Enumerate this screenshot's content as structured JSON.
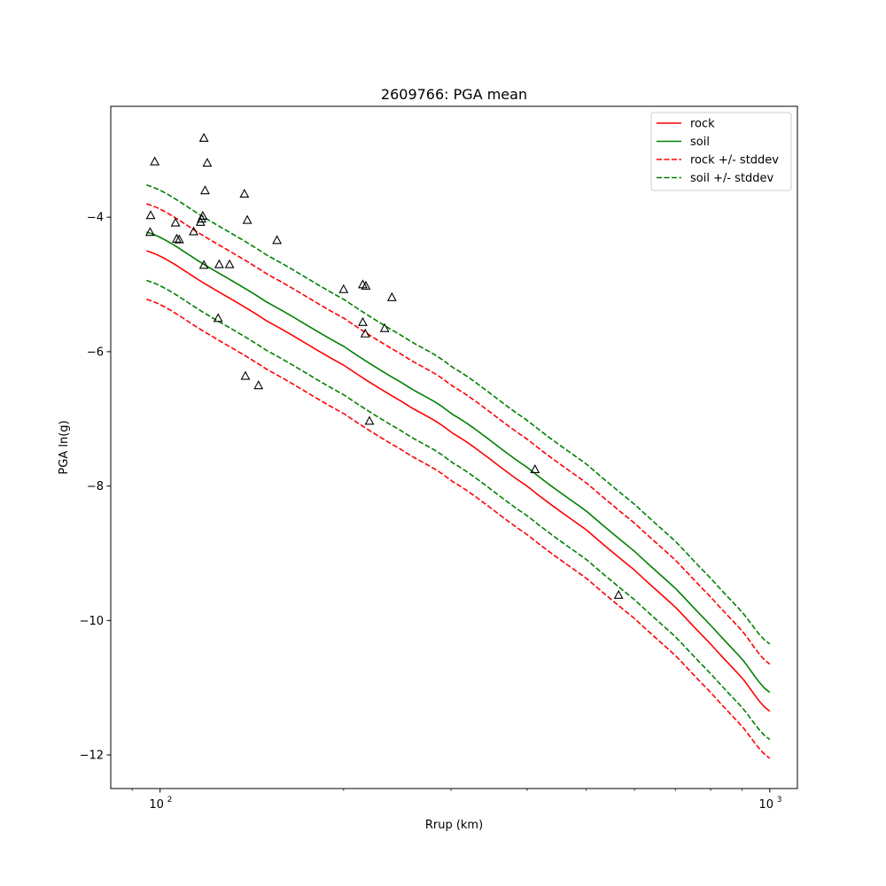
{
  "chart_data": {
    "type": "line",
    "title": "2609766: PGA mean",
    "xlabel": "Rrup (km)",
    "ylabel": "PGA ln(g)",
    "xscale": "log",
    "xlim": [
      83,
      1110
    ],
    "ylim": [
      -12.5,
      -2.35
    ],
    "x_ticks": [
      100,
      1000
    ],
    "x_tick_labels": [
      {
        "base": "10",
        "exp": "2"
      },
      {
        "base": "10",
        "exp": "3"
      }
    ],
    "y_ticks": [
      -12,
      -10,
      -8,
      -6,
      -4
    ],
    "y_tick_labels": [
      "−12",
      "−10",
      "−8",
      "−6",
      "−4"
    ],
    "grid": false,
    "legend_position": "top-right",
    "colors": {
      "rock": "#ff0000",
      "soil": "#008000",
      "points": "#000000"
    },
    "series": [
      {
        "name": "rock",
        "style": "solid",
        "color": "#ff0000",
        "x": [
          95,
          120,
          150,
          200,
          250,
          300,
          400,
          500,
          600,
          700,
          800,
          900,
          1000
        ],
        "y": [
          -4.5,
          -5.02,
          -5.55,
          -6.2,
          -6.75,
          -7.2,
          -8.0,
          -8.65,
          -9.25,
          -9.8,
          -10.35,
          -10.85,
          -11.35
        ]
      },
      {
        "name": "soil",
        "style": "solid",
        "color": "#008000",
        "x": [
          95,
          120,
          150,
          200,
          250,
          300,
          400,
          500,
          600,
          700,
          800,
          900,
          1000
        ],
        "y": [
          -4.22,
          -4.74,
          -5.27,
          -5.92,
          -6.47,
          -6.92,
          -7.72,
          -8.37,
          -8.97,
          -9.52,
          -10.07,
          -10.57,
          -11.07
        ]
      },
      {
        "name": "rock +/- stddev",
        "style": "dashed",
        "color": "#ff0000",
        "x": [
          95,
          120,
          150,
          200,
          250,
          300,
          400,
          500,
          600,
          700,
          800,
          900,
          1000
        ],
        "y": [
          -3.8,
          -4.32,
          -4.85,
          -5.5,
          -6.05,
          -6.5,
          -7.3,
          -7.95,
          -8.55,
          -9.1,
          -9.65,
          -10.15,
          -10.65
        ]
      },
      {
        "name": "rock +/- stddev (lower)",
        "style": "dashed",
        "color": "#ff0000",
        "legend": false,
        "x": [
          95,
          120,
          150,
          200,
          250,
          300,
          400,
          500,
          600,
          700,
          800,
          900,
          1000
        ],
        "y": [
          -5.22,
          -5.74,
          -6.27,
          -6.92,
          -7.47,
          -7.92,
          -8.72,
          -9.37,
          -9.97,
          -10.52,
          -11.07,
          -11.57,
          -12.05
        ]
      },
      {
        "name": "soil +/- stddev",
        "style": "dashed",
        "color": "#008000",
        "x": [
          95,
          120,
          150,
          200,
          250,
          300,
          400,
          500,
          600,
          700,
          800,
          900,
          1000
        ],
        "y": [
          -3.52,
          -4.04,
          -4.57,
          -5.22,
          -5.77,
          -6.22,
          -7.02,
          -7.67,
          -8.27,
          -8.82,
          -9.37,
          -9.87,
          -10.35
        ]
      },
      {
        "name": "soil +/- stddev (lower)",
        "style": "dashed",
        "color": "#008000",
        "legend": false,
        "x": [
          95,
          120,
          150,
          200,
          250,
          300,
          400,
          500,
          600,
          700,
          800,
          900,
          1000
        ],
        "y": [
          -4.94,
          -5.46,
          -5.99,
          -6.64,
          -7.19,
          -7.64,
          -8.44,
          -9.09,
          -9.69,
          -10.24,
          -10.79,
          -11.29,
          -11.77
        ]
      }
    ],
    "legend": [
      "rock",
      "soil",
      "rock +/- stddev",
      "soil +/- stddev"
    ],
    "points": {
      "marker": "triangle",
      "x": [
        118.0,
        98.0,
        96.5,
        96.3,
        119.5,
        118.5,
        117.5,
        117.0,
        116.5,
        106.0,
        106.5,
        107.5,
        113.5,
        118.0,
        125.0,
        130.0,
        137.5,
        139.0,
        155.5,
        124.5,
        138.0,
        145.0,
        200.0,
        215.0,
        217.5,
        240.0,
        215.0,
        217.0,
        233.5,
        220.5,
        412.0,
        565.0
      ],
      "y": [
        -2.82,
        -3.17,
        -3.97,
        -4.22,
        -3.19,
        -3.6,
        -3.98,
        -4.02,
        -4.07,
        -4.08,
        -4.32,
        -4.33,
        -4.21,
        -4.71,
        -4.7,
        -4.7,
        -3.65,
        -4.04,
        -4.34,
        -5.5,
        -6.36,
        -6.5,
        -5.07,
        -5.0,
        -5.02,
        -5.19,
        -5.56,
        -5.73,
        -5.65,
        -7.03,
        -7.75,
        -9.62
      ]
    }
  }
}
